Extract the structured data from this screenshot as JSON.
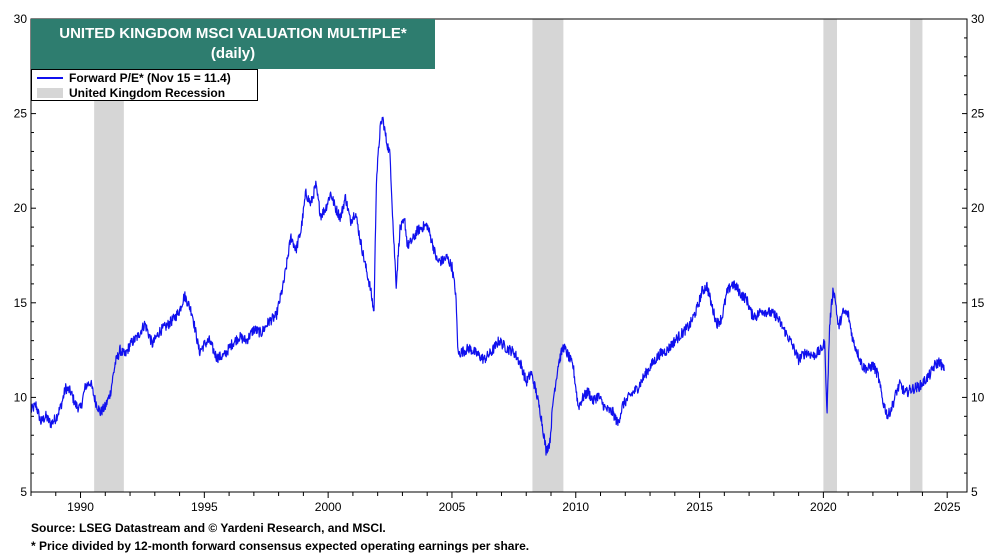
{
  "chart_data": {
    "type": "line",
    "title": "UNITED KINGDOM MSCI VALUATION MULTIPLE*",
    "subtitle": "(daily)",
    "ylim": [
      5,
      30
    ],
    "xlim": [
      1988.0,
      2025.8
    ],
    "yticks": [
      5,
      10,
      15,
      20,
      25,
      30
    ],
    "xticks": [
      1990,
      1995,
      2000,
      2005,
      2010,
      2015,
      2020,
      2025
    ],
    "grid": false,
    "legend_placement": "top-left",
    "series": [
      {
        "name": "Forward P/E* (Nov 15 = 11.4)",
        "color": "#1010ee",
        "x": [
          1988.0,
          1988.2,
          1988.4,
          1988.6,
          1988.8,
          1989.0,
          1989.2,
          1989.4,
          1989.6,
          1989.8,
          1990.0,
          1990.2,
          1990.4,
          1990.6,
          1990.8,
          1991.0,
          1991.2,
          1991.4,
          1991.6,
          1991.8,
          1992.0,
          1992.3,
          1992.6,
          1992.9,
          1993.2,
          1993.5,
          1993.8,
          1994.0,
          1994.2,
          1994.5,
          1994.8,
          1995.0,
          1995.2,
          1995.5,
          1995.8,
          1996.1,
          1996.4,
          1996.7,
          1997.0,
          1997.3,
          1997.6,
          1997.9,
          1998.2,
          1998.5,
          1998.7,
          1998.9,
          1999.1,
          1999.3,
          1999.5,
          1999.7,
          1999.9,
          2000.1,
          2000.3,
          2000.5,
          2000.7,
          2000.9,
          2001.1,
          2001.3,
          2001.5,
          2001.7,
          2001.85,
          2001.95,
          2002.1,
          2002.2,
          2002.35,
          2002.5,
          2002.65,
          2002.75,
          2002.9,
          2003.1,
          2003.2,
          2003.4,
          2003.6,
          2003.8,
          2004.0,
          2004.2,
          2004.4,
          2004.6,
          2004.8,
          2005.0,
          2005.15,
          2005.25,
          2005.4,
          2005.7,
          2006.0,
          2006.3,
          2006.6,
          2006.9,
          2007.2,
          2007.5,
          2007.8,
          2008.0,
          2008.2,
          2008.4,
          2008.6,
          2008.8,
          2008.95,
          2009.1,
          2009.3,
          2009.5,
          2009.7,
          2009.9,
          2010.1,
          2010.3,
          2010.5,
          2010.7,
          2010.9,
          2011.2,
          2011.5,
          2011.7,
          2011.9,
          2012.2,
          2012.5,
          2012.8,
          2013.1,
          2013.4,
          2013.7,
          2014.0,
          2014.3,
          2014.6,
          2014.9,
          2015.1,
          2015.3,
          2015.5,
          2015.7,
          2015.9,
          2016.1,
          2016.3,
          2016.5,
          2016.7,
          2016.9,
          2017.1,
          2017.3,
          2017.5,
          2017.8,
          2018.1,
          2018.4,
          2018.7,
          2019.0,
          2019.3,
          2019.6,
          2019.9,
          2020.05,
          2020.15,
          2020.25,
          2020.4,
          2020.5,
          2020.6,
          2020.8,
          2021.0,
          2021.2,
          2021.4,
          2021.6,
          2021.8,
          2022.0,
          2022.2,
          2022.4,
          2022.6,
          2022.8,
          2022.95,
          2023.1,
          2023.3,
          2023.5,
          2023.7,
          2023.9,
          2024.1,
          2024.3,
          2024.5,
          2024.7,
          2024.88
        ],
        "values": [
          9.3,
          9.6,
          8.7,
          9.0,
          8.6,
          8.9,
          9.5,
          10.5,
          10.3,
          9.6,
          9.4,
          10.6,
          10.8,
          9.8,
          9.2,
          9.5,
          10.2,
          11.8,
          12.5,
          12.2,
          12.8,
          13.2,
          13.9,
          12.8,
          13.5,
          13.8,
          14.2,
          14.6,
          15.4,
          14.5,
          12.4,
          12.8,
          13.0,
          12.1,
          12.2,
          12.8,
          13.2,
          13.0,
          13.6,
          13.4,
          14.0,
          14.3,
          16.0,
          18.5,
          17.8,
          18.8,
          20.8,
          20.2,
          21.2,
          19.6,
          20.0,
          20.8,
          20.0,
          19.5,
          20.6,
          19.3,
          19.8,
          18.3,
          17.0,
          15.8,
          14.5,
          21.5,
          24.2,
          24.8,
          23.6,
          22.8,
          18.3,
          16.0,
          18.9,
          19.3,
          18.0,
          18.3,
          18.8,
          19.0,
          19.1,
          18.2,
          17.2,
          17.2,
          17.4,
          16.9,
          15.5,
          12.3,
          12.4,
          12.6,
          12.3,
          12.0,
          12.4,
          13.0,
          12.6,
          12.4,
          11.7,
          10.8,
          11.3,
          10.3,
          9.0,
          7.2,
          7.6,
          10.0,
          11.8,
          12.7,
          12.2,
          11.6,
          9.5,
          10.0,
          10.3,
          9.8,
          10.1,
          9.4,
          9.2,
          8.6,
          9.6,
          10.1,
          10.5,
          11.2,
          11.8,
          12.3,
          12.5,
          13.0,
          13.4,
          13.8,
          14.7,
          15.6,
          15.9,
          14.8,
          13.9,
          14.2,
          15.5,
          16.0,
          15.8,
          15.4,
          15.2,
          14.4,
          14.3,
          14.6,
          14.5,
          14.3,
          13.6,
          12.9,
          12.0,
          12.4,
          12.2,
          12.5,
          12.9,
          9.2,
          13.8,
          15.8,
          15.0,
          13.7,
          14.5,
          14.4,
          13.0,
          12.3,
          11.6,
          11.5,
          11.7,
          11.2,
          9.8,
          9.0,
          9.6,
          10.3,
          10.7,
          10.2,
          10.4,
          10.5,
          10.6,
          10.9,
          11.2,
          11.7,
          11.9,
          11.4
        ]
      }
    ],
    "recessions": [
      {
        "name": "United Kingdom Recession",
        "start": 1990.55,
        "end": 1991.75
      },
      {
        "start": 2008.25,
        "end": 2009.5
      },
      {
        "start": 2020.0,
        "end": 2020.55
      },
      {
        "start": 2023.5,
        "end": 2024.0
      }
    ],
    "legend": {
      "line_label": "Forward P/E* (Nov 15 = 11.4)",
      "recession_label": "United Kingdom Recession"
    },
    "source": "Source: LSEG Datastream and © Yardeni Research, and MSCI.",
    "footnote": "* Price divided by 12-month forward consensus expected operating earnings per share."
  }
}
